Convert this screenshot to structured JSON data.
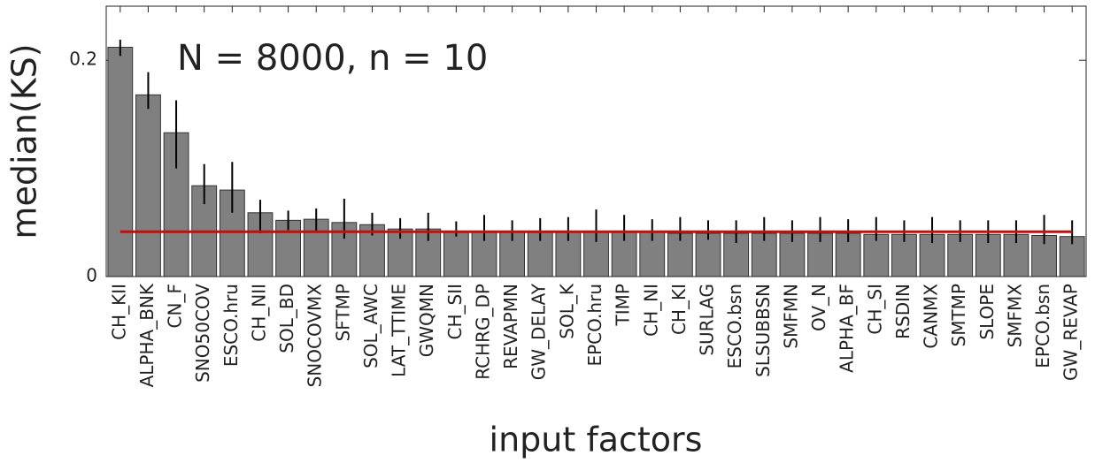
{
  "chart_data": {
    "type": "bar",
    "annotation": "N = 8000, n = 10",
    "y_label": "median(KS)",
    "x_label": "input factors",
    "categories": [
      "CH_KII",
      "ALPHA_BNK",
      "CN_F",
      "SNO50COV",
      "ESCO.hru",
      "CH_NII",
      "SOL_BD",
      "SNOCOVMX",
      "SFTMP",
      "SOL_AWC",
      "LAT_TTIME",
      "GWQMN",
      "CH_SII",
      "RCHRG_DP",
      "REVAPMN",
      "GW_DELAY",
      "SOL_K",
      "EPCO.hru",
      "TIMP",
      "CH_NI",
      "CH_KI",
      "SURLAG",
      "ESCO.bsn",
      "SLSUBBSN",
      "SMFMN",
      "OV_N",
      "ALPHA_BF",
      "CH_SI",
      "RSDIN",
      "CANMX",
      "SMTMP",
      "SLOPE",
      "SMFMX",
      "EPCO.bsn",
      "GW_REVAP"
    ],
    "values": [
      0.212,
      0.168,
      0.133,
      0.084,
      0.08,
      0.059,
      0.052,
      0.053,
      0.05,
      0.048,
      0.044,
      0.044,
      0.041,
      0.041,
      0.041,
      0.041,
      0.041,
      0.041,
      0.041,
      0.041,
      0.04,
      0.04,
      0.04,
      0.04,
      0.04,
      0.04,
      0.04,
      0.039,
      0.039,
      0.039,
      0.039,
      0.039,
      0.039,
      0.038,
      0.037
    ],
    "lower": [
      0.204,
      0.155,
      0.1,
      0.067,
      0.059,
      0.04,
      0.043,
      0.041,
      0.035,
      0.038,
      0.035,
      0.033,
      0.037,
      0.033,
      0.033,
      0.033,
      0.033,
      0.032,
      0.033,
      0.033,
      0.033,
      0.034,
      0.031,
      0.033,
      0.032,
      0.032,
      0.032,
      0.033,
      0.032,
      0.031,
      0.032,
      0.031,
      0.031,
      0.03,
      0.03
    ],
    "upper": [
      0.219,
      0.189,
      0.163,
      0.104,
      0.106,
      0.071,
      0.061,
      0.063,
      0.072,
      0.059,
      0.054,
      0.059,
      0.051,
      0.057,
      0.052,
      0.054,
      0.055,
      0.062,
      0.057,
      0.053,
      0.055,
      0.052,
      0.052,
      0.055,
      0.052,
      0.055,
      0.053,
      0.055,
      0.052,
      0.055,
      0.052,
      0.052,
      0.052,
      0.057,
      0.052
    ],
    "color": "#808080",
    "reference_line": {
      "value": 0.0415,
      "color": "#e00000"
    },
    "ylim": [
      0,
      0.25
    ],
    "yticks": [
      0,
      0.2
    ]
  }
}
